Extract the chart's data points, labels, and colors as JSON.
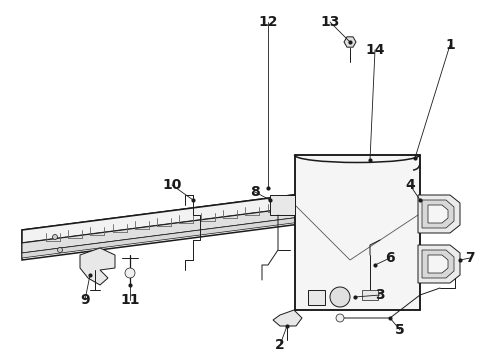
{
  "background_color": "#ffffff",
  "line_color": "#1a1a1a",
  "fig_width": 4.9,
  "fig_height": 3.6,
  "dpi": 100,
  "label_fontsize": 10,
  "lw_main": 1.1,
  "lw_thin": 0.7,
  "lw_detail": 0.5
}
